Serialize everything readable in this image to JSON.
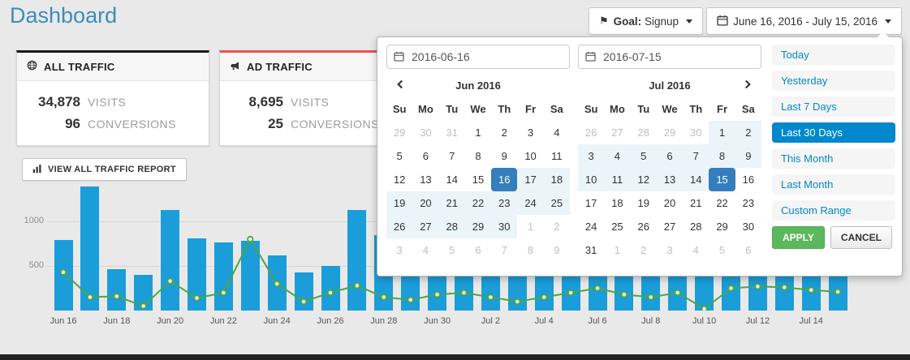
{
  "page": {
    "title": "Dashboard"
  },
  "topbar": {
    "goal_label": "Goal:",
    "goal_value": "Signup",
    "date_range_label": "June 16, 2016 - July 15, 2016"
  },
  "cards": [
    {
      "title": "ALL TRAFFIC",
      "icon": "globe-icon",
      "accent_color": "#1a1a1a",
      "stats": [
        {
          "value": "34,878",
          "label": "VISITS"
        },
        {
          "value": "96",
          "label": "CONVERSIONS"
        }
      ]
    },
    {
      "title": "AD TRAFFIC",
      "icon": "bullhorn-icon",
      "accent_color": "#e2574b",
      "stats": [
        {
          "value": "8,695",
          "label": "VISITS"
        },
        {
          "value": "25",
          "label": "CONVERSIONS"
        }
      ]
    }
  ],
  "actions": {
    "view_report_label": "VIEW ALL TRAFFIC REPORT"
  },
  "datepicker": {
    "start_input": "2016-06-16",
    "end_input": "2016-07-15",
    "day_names": [
      "Su",
      "Mo",
      "Tu",
      "We",
      "Th",
      "Fr",
      "Sa"
    ],
    "left_calendar": {
      "month": "Jun 2016",
      "nav": "prev",
      "weeks": [
        [
          "29|off",
          "30|off",
          "31|off",
          "1|",
          "2|",
          "3|",
          "4|"
        ],
        [
          "5|",
          "6|",
          "7|",
          "8|",
          "9|",
          "10|",
          "11|"
        ],
        [
          "12|",
          "13|",
          "14|",
          "15|",
          "16|sel",
          "17|rng",
          "18|rng"
        ],
        [
          "19|rng",
          "20|rng",
          "21|rng",
          "22|rng",
          "23|rng",
          "24|rng",
          "25|rng"
        ],
        [
          "26|rng",
          "27|rng",
          "28|rng",
          "29|rng",
          "30|rng",
          "1|off",
          "2|off"
        ],
        [
          "3|off",
          "4|off",
          "5|off",
          "6|off",
          "7|off",
          "8|off",
          "9|off"
        ]
      ]
    },
    "right_calendar": {
      "month": "Jul 2016",
      "nav": "next",
      "weeks": [
        [
          "26|off",
          "27|off",
          "28|off",
          "29|off",
          "30|off",
          "1|rng",
          "2|rng"
        ],
        [
          "3|rng",
          "4|rng",
          "5|rng",
          "6|rng",
          "7|rng",
          "8|rng",
          "9|rng"
        ],
        [
          "10|rng",
          "11|rng",
          "12|rng",
          "13|rng",
          "14|rng",
          "15|sel",
          "16|"
        ],
        [
          "17|",
          "18|",
          "19|",
          "20|",
          "21|",
          "22|",
          "23|"
        ],
        [
          "24|",
          "25|",
          "26|",
          "27|",
          "28|",
          "29|",
          "30|"
        ],
        [
          "31|",
          "1|off",
          "2|off",
          "3|off",
          "4|off",
          "5|off",
          "6|off"
        ]
      ]
    },
    "ranges": [
      "Today",
      "Yesterday",
      "Last 7 Days",
      "Last 30 Days",
      "This Month",
      "Last Month",
      "Custom Range"
    ],
    "active_range": "Last 30 Days",
    "apply_label": "APPLY",
    "cancel_label": "CANCEL",
    "colors": {
      "selected_day_bg": "#357ebd",
      "range_day_bg": "#ebf4f8",
      "active_range_bg": "#0088cc",
      "apply_bg": "#5cb85c"
    }
  },
  "chart_data": {
    "type": "bar",
    "title": "",
    "xlabel": "",
    "ylabel": "",
    "ylim": [
      0,
      1450
    ],
    "yticks": [
      500,
      1000
    ],
    "grid": true,
    "x": [
      "Jun 16",
      "Jun 17",
      "Jun 18",
      "Jun 19",
      "Jun 20",
      "Jun 21",
      "Jun 22",
      "Jun 23",
      "Jun 24",
      "Jun 25",
      "Jun 26",
      "Jun 27",
      "Jun 28",
      "Jun 29",
      "Jun 30",
      "Jul 1",
      "Jul 2",
      "Jul 3",
      "Jul 4",
      "Jul 5",
      "Jul 6",
      "Jul 7",
      "Jul 8",
      "Jul 9",
      "Jul 10",
      "Jul 11",
      "Jul 12",
      "Jul 13",
      "Jul 14",
      "Jul 15"
    ],
    "x_tick_labels": [
      "Jun 16",
      "Jun 18",
      "Jun 20",
      "Jun 22",
      "Jun 24",
      "Jun 26",
      "Jun 28",
      "Jun 30",
      "Jul 2",
      "Jul 4",
      "Jul 6",
      "Jul 8",
      "Jul 10",
      "Jul 12",
      "Jul 14"
    ],
    "series": [
      {
        "name": "visits",
        "type": "bar",
        "color": "#1b9dd9",
        "values": [
          790,
          1390,
          460,
          400,
          1130,
          810,
          760,
          780,
          620,
          430,
          500,
          1130,
          850,
          700,
          640,
          600,
          690,
          740,
          800,
          710,
          650,
          610,
          700,
          790,
          520,
          700,
          760,
          720,
          680,
          700
        ]
      },
      {
        "name": "conversions",
        "type": "line",
        "color": "#4da546",
        "values": [
          430,
          150,
          160,
          50,
          330,
          140,
          200,
          800,
          300,
          100,
          200,
          280,
          150,
          120,
          180,
          200,
          150,
          100,
          150,
          200,
          250,
          180,
          150,
          200,
          20,
          250,
          270,
          260,
          230,
          210
        ]
      }
    ],
    "legend": false
  }
}
